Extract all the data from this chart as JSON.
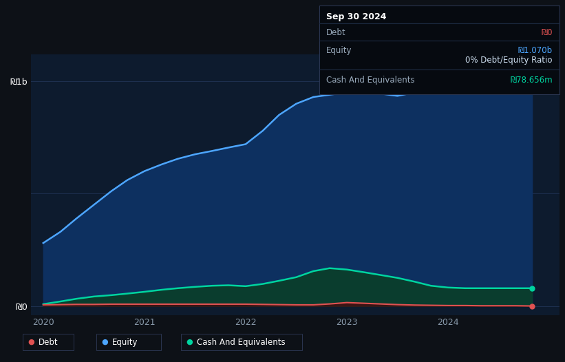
{
  "bg_color": "#0d1117",
  "plot_bg_color": "#0d1b2e",
  "grid_color": "#1e3050",
  "y_label_1b": "₪1b",
  "y_label_0": "₪0",
  "x_ticks": [
    "2020",
    "2021",
    "2022",
    "2023",
    "2024"
  ],
  "legend_items": [
    {
      "label": "Debt",
      "color": "#e05252"
    },
    {
      "label": "Equity",
      "color": "#4da6ff"
    },
    {
      "label": "Cash And Equivalents",
      "color": "#00d4a0"
    }
  ],
  "equity_color": "#4da6ff",
  "equity_fill": "#0d3060",
  "debt_color": "#e05252",
  "debt_fill": "#3a1515",
  "cash_color": "#00d4a0",
  "cash_fill": "#0a3d2e",
  "x_data": [
    2020.0,
    2020.17,
    2020.33,
    2020.5,
    2020.67,
    2020.83,
    2021.0,
    2021.17,
    2021.33,
    2021.5,
    2021.67,
    2021.83,
    2022.0,
    2022.17,
    2022.33,
    2022.5,
    2022.67,
    2022.83,
    2023.0,
    2023.17,
    2023.33,
    2023.5,
    2023.67,
    2023.83,
    2024.0,
    2024.17,
    2024.33,
    2024.5,
    2024.67,
    2024.83
  ],
  "equity_y": [
    0.28,
    0.33,
    0.39,
    0.45,
    0.51,
    0.56,
    0.6,
    0.63,
    0.655,
    0.675,
    0.69,
    0.705,
    0.72,
    0.78,
    0.85,
    0.9,
    0.93,
    0.94,
    0.95,
    0.96,
    0.945,
    0.935,
    0.95,
    0.97,
    0.99,
    1.01,
    1.03,
    1.045,
    1.06,
    1.07
  ],
  "debt_y": [
    0.005,
    0.006,
    0.007,
    0.007,
    0.008,
    0.008,
    0.008,
    0.008,
    0.008,
    0.008,
    0.008,
    0.008,
    0.008,
    0.007,
    0.006,
    0.005,
    0.005,
    0.009,
    0.015,
    0.012,
    0.009,
    0.006,
    0.004,
    0.003,
    0.002,
    0.002,
    0.001,
    0.001,
    0.001,
    0.0
  ],
  "cash_y": [
    0.008,
    0.02,
    0.032,
    0.042,
    0.048,
    0.055,
    0.063,
    0.072,
    0.079,
    0.085,
    0.09,
    0.092,
    0.088,
    0.098,
    0.112,
    0.128,
    0.155,
    0.168,
    0.162,
    0.15,
    0.138,
    0.125,
    0.108,
    0.09,
    0.082,
    0.079,
    0.079,
    0.079,
    0.079,
    0.079
  ],
  "ylim": [
    -0.04,
    1.12
  ],
  "xlim": [
    2019.88,
    2025.1
  ],
  "tooltip": {
    "date": "Sep 30 2024",
    "rows": [
      {
        "label": "Debt",
        "value": "₪0",
        "value_color": "#e05252"
      },
      {
        "label": "Equity",
        "value": "₪1.070b",
        "value_color": "#4da6ff"
      },
      {
        "label": "",
        "value": "0% Debt/Equity Ratio",
        "value_color": "#ffffff",
        "bold_prefix": "0%"
      },
      {
        "label": "Cash And Equivalents",
        "value": "₪78.656m",
        "value_color": "#00d4a0"
      }
    ]
  }
}
